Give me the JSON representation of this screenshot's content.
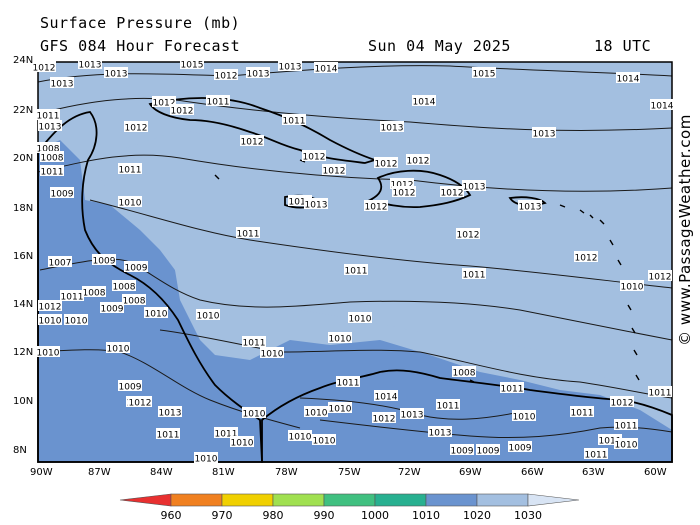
{
  "header": {
    "title": "Surface Pressure (mb)",
    "subtitle": "GFS 084 Hour Forecast",
    "date": "Sun 04 May 2025",
    "time": "18 UTC"
  },
  "watermark": "© www.PassageWeather.com",
  "axes": {
    "lat_labels": [
      "24N",
      "22N",
      "20N",
      "18N",
      "16N",
      "14N",
      "12N",
      "10N",
      "8N"
    ],
    "lon_labels": [
      "90W",
      "87W",
      "84W",
      "81W",
      "78W",
      "75W",
      "72W",
      "69W",
      "66W",
      "63W",
      "60W"
    ]
  },
  "colors": {
    "ocean": "#a3bfe0",
    "band_1000_1010": "#6a93cf",
    "land_outline": "#000000",
    "isobar": "#1a1a1a"
  },
  "colorbar": {
    "labels": [
      "960",
      "970",
      "980",
      "990",
      "1000",
      "1010",
      "1020",
      "1030"
    ],
    "colors": [
      "#e83030",
      "#f08020",
      "#f0d000",
      "#a0e050",
      "#40c080",
      "#28b090",
      "#6a93cf",
      "#a3bfe0",
      "#d8e4f4"
    ]
  },
  "isobar_labels": [
    {
      "t": "1012"
    },
    {
      "t": "1013"
    },
    {
      "t": "1013"
    },
    {
      "t": "1013"
    },
    {
      "t": "1012"
    },
    {
      "t": "1013"
    },
    {
      "t": "1013"
    },
    {
      "t": "1014"
    },
    {
      "t": "1015"
    },
    {
      "t": "1015"
    },
    {
      "t": "1015"
    },
    {
      "t": "1014"
    },
    {
      "t": "1013"
    },
    {
      "t": "1011"
    },
    {
      "t": "1012"
    },
    {
      "t": "1012"
    },
    {
      "t": "1011"
    },
    {
      "t": "1014"
    },
    {
      "t": "1011"
    },
    {
      "t": "1012"
    },
    {
      "t": "1013"
    },
    {
      "t": "1014"
    },
    {
      "t": "1013"
    },
    {
      "t": "1012"
    },
    {
      "t": "1012"
    },
    {
      "t": "1012"
    },
    {
      "t": "1012"
    },
    {
      "t": "1011"
    },
    {
      "t": "1012"
    },
    {
      "t": "1008"
    },
    {
      "t": "1008"
    },
    {
      "t": "1011"
    },
    {
      "t": "1009"
    },
    {
      "t": "1010"
    },
    {
      "t": "1012"
    },
    {
      "t": "1013"
    },
    {
      "t": "1012"
    },
    {
      "t": "1012"
    },
    {
      "t": "1013"
    },
    {
      "t": "1013"
    },
    {
      "t": "1012"
    },
    {
      "t": "1012"
    },
    {
      "t": "1011"
    },
    {
      "t": "1012"
    },
    {
      "t": "1011"
    },
    {
      "t": "1011"
    },
    {
      "t": "1012"
    },
    {
      "t": "1012"
    },
    {
      "t": "1010"
    },
    {
      "t": "1007"
    },
    {
      "t": "1009"
    },
    {
      "t": "1009"
    },
    {
      "t": "1008"
    },
    {
      "t": "1008"
    },
    {
      "t": "1008"
    },
    {
      "t": "1011"
    },
    {
      "t": "1012"
    },
    {
      "t": "1009"
    },
    {
      "t": "1010"
    },
    {
      "t": "1010"
    },
    {
      "t": "1010"
    },
    {
      "t": "1010"
    },
    {
      "t": "1010"
    },
    {
      "t": "1010"
    },
    {
      "t": "1010"
    },
    {
      "t": "1010"
    },
    {
      "t": "1011"
    },
    {
      "t": "1010"
    },
    {
      "t": "1009"
    },
    {
      "t": "1009"
    },
    {
      "t": "1012"
    },
    {
      "t": "1013"
    },
    {
      "t": "1011"
    },
    {
      "t": "1010"
    },
    {
      "t": "1011"
    },
    {
      "t": "1010"
    },
    {
      "t": "1010"
    },
    {
      "t": "1014"
    },
    {
      "t": "1012"
    },
    {
      "t": "1013"
    },
    {
      "t": "1011"
    },
    {
      "t": "1013"
    },
    {
      "t": "1011"
    },
    {
      "t": "1010"
    },
    {
      "t": "1009"
    },
    {
      "t": "1009"
    },
    {
      "t": "1009"
    },
    {
      "t": "1011"
    },
    {
      "t": "1010"
    },
    {
      "t": "1011"
    },
    {
      "t": "1012"
    },
    {
      "t": "1011"
    },
    {
      "t": "1011"
    },
    {
      "t": "1011"
    },
    {
      "t": "1010"
    },
    {
      "t": "1011"
    },
    {
      "t": "1011"
    },
    {
      "t": "1010"
    },
    {
      "t": "1010"
    },
    {
      "t": "1010"
    },
    {
      "t": "1008"
    }
  ]
}
